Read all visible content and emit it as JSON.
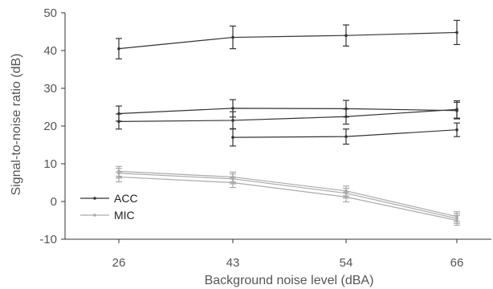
{
  "chart_data": {
    "type": "line",
    "xlabel": "Background noise level (dBA)",
    "ylabel": "Signal-to-noise ratio (dB)",
    "categories": [
      "26",
      "43",
      "54",
      "66"
    ],
    "ylim": [
      -10,
      50
    ],
    "yticks": [
      -10,
      0,
      10,
      20,
      30,
      40,
      50
    ],
    "grid": false,
    "legend_position": "bottom-left",
    "legend": [
      {
        "name": "ACC",
        "color": "#333333"
      },
      {
        "name": "MIC",
        "color": "#aaaaaa"
      }
    ],
    "series": [
      {
        "group": "ACC",
        "color": "#333333",
        "values": [
          40.5,
          43.5,
          44.0,
          44.8
        ],
        "errors": [
          2.7,
          3.0,
          2.8,
          3.2
        ],
        "x_start": 0
      },
      {
        "group": "ACC",
        "color": "#333333",
        "values": [
          23.3,
          24.7,
          24.6,
          24.1
        ],
        "errors": [
          2.0,
          2.3,
          2.2,
          2.2
        ],
        "x_start": 0
      },
      {
        "group": "ACC",
        "color": "#333333",
        "values": [
          21.2,
          21.5,
          22.5,
          24.4
        ],
        "errors": [
          2.0,
          2.3,
          2.0,
          2.3
        ],
        "x_start": 0
      },
      {
        "group": "ACC",
        "color": "#333333",
        "values": [
          null,
          17.0,
          17.2,
          19.0
        ],
        "errors": [
          null,
          2.3,
          2.0,
          1.8
        ],
        "x_start": 1
      },
      {
        "group": "MIC",
        "color": "#aaaaaa",
        "values": [
          8.0,
          6.5,
          2.8,
          -4.0
        ],
        "errors": [
          1.3,
          1.3,
          1.3,
          1.3
        ],
        "x_start": 0
      },
      {
        "group": "MIC",
        "color": "#aaaaaa",
        "values": [
          7.5,
          6.0,
          2.2,
          -4.5
        ],
        "errors": [
          1.3,
          1.3,
          1.3,
          1.3
        ],
        "x_start": 0
      },
      {
        "group": "MIC",
        "color": "#aaaaaa",
        "values": [
          6.5,
          5.0,
          1.2,
          -5.0
        ],
        "errors": [
          1.3,
          1.3,
          1.3,
          1.3
        ],
        "x_start": 0
      }
    ]
  }
}
